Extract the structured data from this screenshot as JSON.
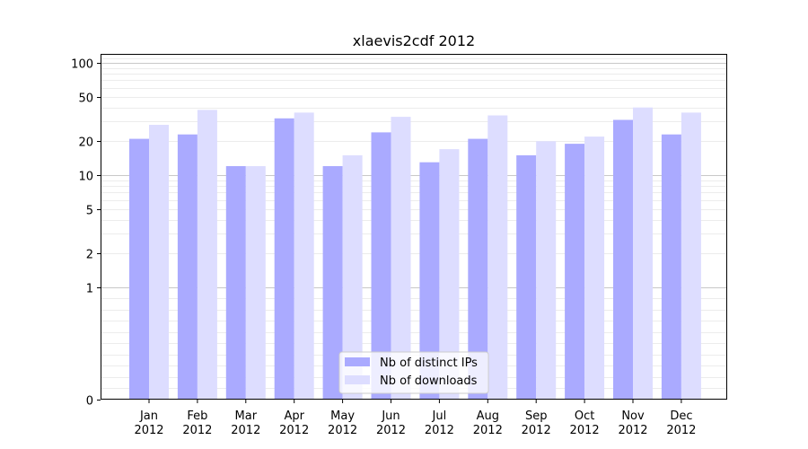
{
  "chart_data": {
    "type": "bar",
    "title": "xlaevis2cdf 2012",
    "xlabel": "",
    "ylabel": "",
    "yscale": "symlog",
    "ylim": [
      0,
      120
    ],
    "yticks": [
      0,
      1,
      2,
      5,
      10,
      20,
      50,
      100
    ],
    "ytick_labels": [
      "0",
      "1",
      "2",
      "5",
      "10",
      "20",
      "50",
      "100"
    ],
    "categories": [
      [
        "Jan",
        "2012"
      ],
      [
        "Feb",
        "2012"
      ],
      [
        "Mar",
        "2012"
      ],
      [
        "Apr",
        "2012"
      ],
      [
        "May",
        "2012"
      ],
      [
        "Jun",
        "2012"
      ],
      [
        "Jul",
        "2012"
      ],
      [
        "Aug",
        "2012"
      ],
      [
        "Sep",
        "2012"
      ],
      [
        "Oct",
        "2012"
      ],
      [
        "Nov",
        "2012"
      ],
      [
        "Dec",
        "2012"
      ]
    ],
    "series": [
      {
        "name": "Nb of distinct IPs",
        "color": "#aaaaff",
        "values": [
          21,
          23,
          12,
          32,
          12,
          24,
          13,
          21,
          15,
          19,
          31,
          23
        ]
      },
      {
        "name": "Nb of downloads",
        "color": "#ddddff",
        "values": [
          28,
          38,
          12,
          36,
          15,
          33,
          17,
          34,
          20,
          22,
          40,
          36
        ]
      }
    ],
    "grid": true,
    "legend_position": "bottom-center"
  }
}
